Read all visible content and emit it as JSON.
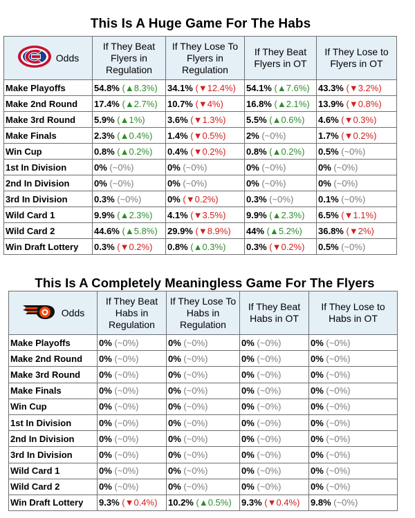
{
  "habs": {
    "title": "This Is A Huge Game For The Habs",
    "corner_label": "Odds",
    "logo_icon": "canadiens-logo-icon",
    "columns": [
      "If They Beat Flyers in Regulation",
      "If They Lose To Flyers in Regulation",
      "If They Beat Flyers in OT",
      "If They Lose to Flyers in OT"
    ],
    "rows": [
      {
        "label": "Make Playoffs",
        "cells": [
          [
            "54.8%",
            "(▲8.3%)",
            "up"
          ],
          [
            "34.1%",
            "(▼12.4%)",
            "down"
          ],
          [
            "54.1%",
            "(▲7.6%)",
            "up"
          ],
          [
            "43.3%",
            "(▼3.2%)",
            "down"
          ]
        ]
      },
      {
        "label": "Make 2nd Round",
        "cells": [
          [
            "17.4%",
            "(▲2.7%)",
            "up"
          ],
          [
            "10.7%",
            "(▼4%)",
            "down"
          ],
          [
            "16.8%",
            "(▲2.1%)",
            "up"
          ],
          [
            "13.9%",
            "(▼0.8%)",
            "down"
          ]
        ]
      },
      {
        "label": "Make 3rd Round",
        "cells": [
          [
            "5.9%",
            "(▲1%)",
            "up"
          ],
          [
            "3.6%",
            "(▼1.3%)",
            "down"
          ],
          [
            "5.5%",
            "(▲0.6%)",
            "up"
          ],
          [
            "4.6%",
            "(▼0.3%)",
            "down"
          ]
        ]
      },
      {
        "label": "Make Finals",
        "cells": [
          [
            "2.3%",
            "(▲0.4%)",
            "up"
          ],
          [
            "1.4%",
            "(▼0.5%)",
            "down"
          ],
          [
            "2%",
            "(~0%)",
            "flat"
          ],
          [
            "1.7%",
            "(▼0.2%)",
            "down"
          ]
        ]
      },
      {
        "label": "Win Cup",
        "cells": [
          [
            "0.8%",
            "(▲0.2%)",
            "up"
          ],
          [
            "0.4%",
            "(▼0.2%)",
            "down"
          ],
          [
            "0.8%",
            "(▲0.2%)",
            "up"
          ],
          [
            "0.5%",
            "(~0%)",
            "flat"
          ]
        ]
      },
      {
        "label": "1st In Division",
        "cells": [
          [
            "0%",
            "(~0%)",
            "flat"
          ],
          [
            "0%",
            "(~0%)",
            "flat"
          ],
          [
            "0%",
            "(~0%)",
            "flat"
          ],
          [
            "0%",
            "(~0%)",
            "flat"
          ]
        ]
      },
      {
        "label": "2nd In Division",
        "cells": [
          [
            "0%",
            "(~0%)",
            "flat"
          ],
          [
            "0%",
            "(~0%)",
            "flat"
          ],
          [
            "0%",
            "(~0%)",
            "flat"
          ],
          [
            "0%",
            "(~0%)",
            "flat"
          ]
        ]
      },
      {
        "label": "3rd In Division",
        "cells": [
          [
            "0.3%",
            "(~0%)",
            "flat"
          ],
          [
            "0%",
            "(▼0.2%)",
            "down"
          ],
          [
            "0.3%",
            "(~0%)",
            "flat"
          ],
          [
            "0.1%",
            "(~0%)",
            "flat"
          ]
        ]
      },
      {
        "label": "Wild Card 1",
        "cells": [
          [
            "9.9%",
            "(▲2.3%)",
            "up"
          ],
          [
            "4.1%",
            "(▼3.5%)",
            "down"
          ],
          [
            "9.9%",
            "(▲2.3%)",
            "up"
          ],
          [
            "6.5%",
            "(▼1.1%)",
            "down"
          ]
        ]
      },
      {
        "label": "Wild Card 2",
        "cells": [
          [
            "44.6%",
            "(▲5.8%)",
            "up"
          ],
          [
            "29.9%",
            "(▼8.9%)",
            "down"
          ],
          [
            "44%",
            "(▲5.2%)",
            "up"
          ],
          [
            "36.8%",
            "(▼2%)",
            "down"
          ]
        ]
      },
      {
        "label": "Win Draft Lottery",
        "cells": [
          [
            "0.3%",
            "(▼0.2%)",
            "down"
          ],
          [
            "0.8%",
            "(▲0.3%)",
            "up"
          ],
          [
            "0.3%",
            "(▼0.2%)",
            "down"
          ],
          [
            "0.5%",
            "(~0%)",
            "flat"
          ]
        ]
      }
    ]
  },
  "flyers": {
    "title": "This Is A Completely Meaningless Game For The Flyers",
    "corner_label": "Odds",
    "logo_icon": "flyers-logo-icon",
    "columns": [
      "If They Beat Habs in Regulation",
      "If They Lose To Habs in Regulation",
      "If They Beat Habs in OT",
      "If They Lose to Habs in OT"
    ],
    "rows": [
      {
        "label": "Make Playoffs",
        "cells": [
          [
            "0%",
            "(~0%)",
            "flat"
          ],
          [
            "0%",
            "(~0%)",
            "flat"
          ],
          [
            "0%",
            "(~0%)",
            "flat"
          ],
          [
            "0%",
            "(~0%)",
            "flat"
          ]
        ]
      },
      {
        "label": "Make 2nd Round",
        "cells": [
          [
            "0%",
            "(~0%)",
            "flat"
          ],
          [
            "0%",
            "(~0%)",
            "flat"
          ],
          [
            "0%",
            "(~0%)",
            "flat"
          ],
          [
            "0%",
            "(~0%)",
            "flat"
          ]
        ]
      },
      {
        "label": "Make 3rd Round",
        "cells": [
          [
            "0%",
            "(~0%)",
            "flat"
          ],
          [
            "0%",
            "(~0%)",
            "flat"
          ],
          [
            "0%",
            "(~0%)",
            "flat"
          ],
          [
            "0%",
            "(~0%)",
            "flat"
          ]
        ]
      },
      {
        "label": "Make Finals",
        "cells": [
          [
            "0%",
            "(~0%)",
            "flat"
          ],
          [
            "0%",
            "(~0%)",
            "flat"
          ],
          [
            "0%",
            "(~0%)",
            "flat"
          ],
          [
            "0%",
            "(~0%)",
            "flat"
          ]
        ]
      },
      {
        "label": "Win Cup",
        "cells": [
          [
            "0%",
            "(~0%)",
            "flat"
          ],
          [
            "0%",
            "(~0%)",
            "flat"
          ],
          [
            "0%",
            "(~0%)",
            "flat"
          ],
          [
            "0%",
            "(~0%)",
            "flat"
          ]
        ]
      },
      {
        "label": "1st In Division",
        "cells": [
          [
            "0%",
            "(~0%)",
            "flat"
          ],
          [
            "0%",
            "(~0%)",
            "flat"
          ],
          [
            "0%",
            "(~0%)",
            "flat"
          ],
          [
            "0%",
            "(~0%)",
            "flat"
          ]
        ]
      },
      {
        "label": "2nd In Division",
        "cells": [
          [
            "0%",
            "(~0%)",
            "flat"
          ],
          [
            "0%",
            "(~0%)",
            "flat"
          ],
          [
            "0%",
            "(~0%)",
            "flat"
          ],
          [
            "0%",
            "(~0%)",
            "flat"
          ]
        ]
      },
      {
        "label": "3rd In Division",
        "cells": [
          [
            "0%",
            "(~0%)",
            "flat"
          ],
          [
            "0%",
            "(~0%)",
            "flat"
          ],
          [
            "0%",
            "(~0%)",
            "flat"
          ],
          [
            "0%",
            "(~0%)",
            "flat"
          ]
        ]
      },
      {
        "label": "Wild Card 1",
        "cells": [
          [
            "0%",
            "(~0%)",
            "flat"
          ],
          [
            "0%",
            "(~0%)",
            "flat"
          ],
          [
            "0%",
            "(~0%)",
            "flat"
          ],
          [
            "0%",
            "(~0%)",
            "flat"
          ]
        ]
      },
      {
        "label": "Wild Card 2",
        "cells": [
          [
            "0%",
            "(~0%)",
            "flat"
          ],
          [
            "0%",
            "(~0%)",
            "flat"
          ],
          [
            "0%",
            "(~0%)",
            "flat"
          ],
          [
            "0%",
            "(~0%)",
            "flat"
          ]
        ]
      },
      {
        "label": "Win Draft Lottery",
        "cells": [
          [
            "9.3%",
            "(▼0.4%)",
            "down"
          ],
          [
            "10.2%",
            "(▲0.5%)",
            "up"
          ],
          [
            "9.3%",
            "(▼0.4%)",
            "down"
          ],
          [
            "9.8%",
            "(~0%)",
            "flat"
          ]
        ]
      }
    ]
  },
  "colors": {
    "header_bg": "#e4eff6",
    "up": "#2e8b2e",
    "down": "#d11f1f",
    "flat": "#7a7a7a",
    "habs_red": "#c8102e",
    "habs_blue": "#1b3f8b",
    "flyers_orange": "#f74902",
    "flyers_black": "#111111"
  }
}
